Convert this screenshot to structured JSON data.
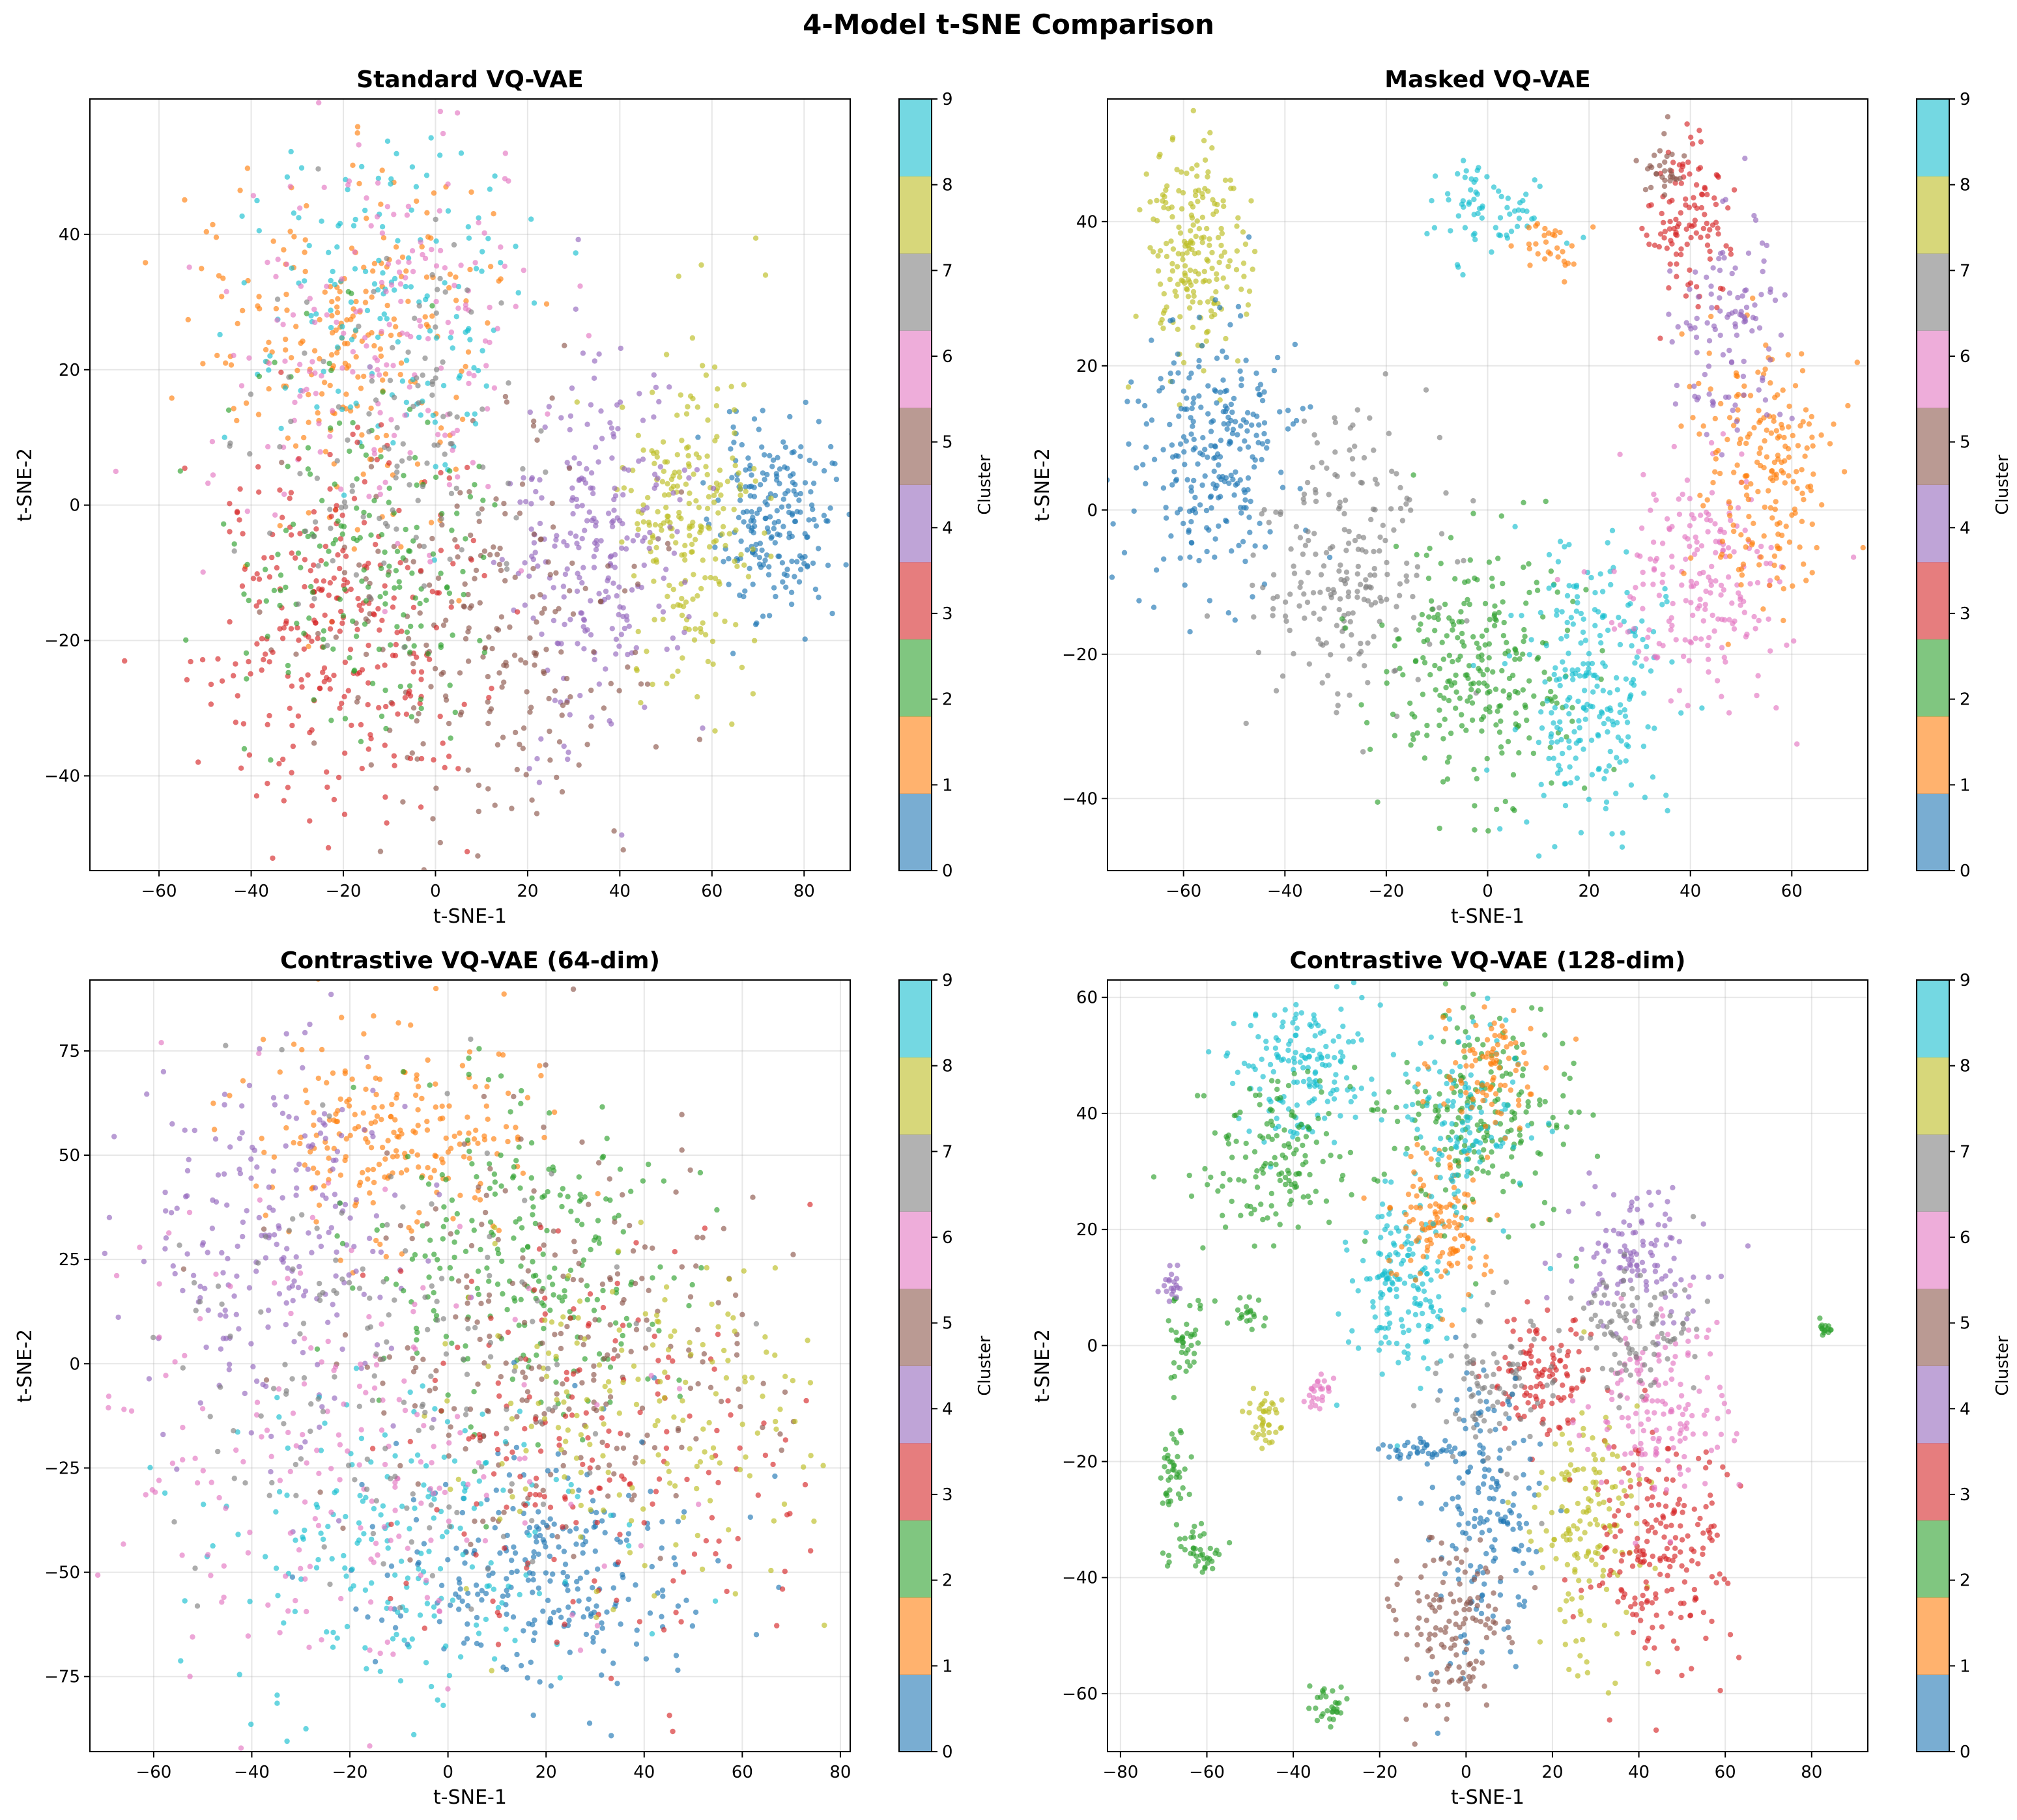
{
  "figure_title": "4-Model t-SNE Comparison",
  "chart_data": [
    {
      "type": "scatter",
      "title": "Standard VQ-VAE",
      "xlabel": "t-SNE-1",
      "ylabel": "t-SNE-2",
      "xlim": [
        -75,
        90
      ],
      "ylim": [
        -54,
        60
      ],
      "xticks": [
        -60,
        -40,
        -20,
        0,
        20,
        40,
        60,
        80
      ],
      "yticks": [
        -40,
        -20,
        0,
        20,
        40
      ],
      "xtick_labels": [
        "−60",
        "−40",
        "−20",
        "0",
        "20",
        "40",
        "60",
        "80"
      ],
      "ytick_labels": [
        "−40",
        "−20",
        "0",
        "20",
        "40"
      ],
      "grid": true,
      "colorbar": {
        "label": "Cluster",
        "ticks": [
          0,
          1,
          2,
          3,
          4,
          5,
          6,
          7,
          8,
          9
        ],
        "tick_labels": [
          "0",
          "1",
          "2",
          "3",
          "4",
          "5",
          "6",
          "7",
          "8",
          "9"
        ]
      },
      "seed": 11,
      "clusters": [
        {
          "cluster": 0,
          "center": [
            73,
            -2
          ],
          "spread": [
            6,
            7
          ],
          "n": 210
        },
        {
          "cluster": 8,
          "center": [
            55,
            -2
          ],
          "spread": [
            7,
            12
          ],
          "n": 230
        },
        {
          "cluster": 4,
          "center": [
            35,
            -5
          ],
          "spread": [
            10,
            14
          ],
          "n": 250
        },
        {
          "cluster": 5,
          "center": [
            10,
            -18
          ],
          "spread": [
            18,
            14
          ],
          "n": 230
        },
        {
          "cluster": 1,
          "center": [
            -20,
            25
          ],
          "spread": [
            16,
            14
          ],
          "n": 230
        },
        {
          "cluster": 9,
          "center": [
            -10,
            30
          ],
          "spread": [
            16,
            14
          ],
          "n": 160
        },
        {
          "cluster": 6,
          "center": [
            -10,
            25
          ],
          "spread": [
            18,
            16
          ],
          "n": 180
        },
        {
          "cluster": 3,
          "center": [
            -22,
            -18
          ],
          "spread": [
            14,
            14
          ],
          "n": 280
        },
        {
          "cluster": 2,
          "center": [
            -15,
            -10
          ],
          "spread": [
            14,
            14
          ],
          "n": 180
        },
        {
          "cluster": 7,
          "center": [
            -10,
            10
          ],
          "spread": [
            18,
            14
          ],
          "n": 120
        }
      ]
    },
    {
      "type": "scatter",
      "title": "Masked VQ-VAE",
      "xlabel": "t-SNE-1",
      "ylabel": "t-SNE-2",
      "xlim": [
        -75,
        75
      ],
      "ylim": [
        -50,
        57
      ],
      "xticks": [
        -60,
        -40,
        -20,
        0,
        20,
        40,
        60
      ],
      "yticks": [
        -40,
        -20,
        0,
        20,
        40
      ],
      "xtick_labels": [
        "−60",
        "−40",
        "−20",
        "0",
        "20",
        "40",
        "60"
      ],
      "ytick_labels": [
        "−40",
        "−20",
        "0",
        "20",
        "40"
      ],
      "grid": true,
      "colorbar": {
        "label": "Cluster",
        "ticks": [
          0,
          1,
          2,
          3,
          4,
          5,
          6,
          7,
          8,
          9
        ],
        "tick_labels": [
          "0",
          "1",
          "2",
          "3",
          "4",
          "5",
          "6",
          "7",
          "8",
          "9"
        ]
      },
      "seed": 23,
      "clusters": [
        {
          "cluster": 8,
          "center": [
            -58,
            35
          ],
          "spread": [
            5,
            8
          ],
          "n": 200
        },
        {
          "cluster": 0,
          "center": [
            -55,
            8
          ],
          "spread": [
            7,
            9
          ],
          "n": 260
        },
        {
          "cluster": 7,
          "center": [
            -28,
            -8
          ],
          "spread": [
            9,
            9
          ],
          "n": 220
        },
        {
          "cluster": 2,
          "center": [
            -2,
            -22
          ],
          "spread": [
            10,
            9
          ],
          "n": 260
        },
        {
          "cluster": 9,
          "center": [
            20,
            -25
          ],
          "spread": [
            8,
            10
          ],
          "n": 240
        },
        {
          "cluster": 6,
          "center": [
            42,
            -10
          ],
          "spread": [
            8,
            8
          ],
          "n": 200
        },
        {
          "cluster": 1,
          "center": [
            55,
            5
          ],
          "spread": [
            7,
            10
          ],
          "n": 200
        },
        {
          "cluster": 3,
          "center": [
            40,
            40
          ],
          "spread": [
            4,
            6
          ],
          "n": 110
        },
        {
          "cluster": 4,
          "center": [
            48,
            25
          ],
          "spread": [
            5,
            8
          ],
          "n": 110
        },
        {
          "cluster": 5,
          "center": [
            35,
            48
          ],
          "spread": [
            2,
            2
          ],
          "n": 30
        },
        {
          "cluster": 9,
          "center": [
            0,
            42
          ],
          "spread": [
            7,
            3
          ],
          "n": 70
        },
        {
          "cluster": 1,
          "center": [
            12,
            37
          ],
          "spread": [
            3,
            2
          ],
          "n": 30
        }
      ]
    },
    {
      "type": "scatter",
      "title": "Contrastive VQ-VAE (64-dim)",
      "xlabel": "t-SNE-1",
      "ylabel": "t-SNE-2",
      "xlim": [
        -73,
        82
      ],
      "ylim": [
        -93,
        92
      ],
      "xticks": [
        -60,
        -40,
        -20,
        0,
        20,
        40,
        60,
        80
      ],
      "yticks": [
        -75,
        -50,
        -25,
        0,
        25,
        50,
        75
      ],
      "xtick_labels": [
        "−60",
        "−40",
        "−20",
        "0",
        "20",
        "40",
        "60",
        "80"
      ],
      "ytick_labels": [
        "−75",
        "−50",
        "−25",
        "0",
        "25",
        "50",
        "75"
      ],
      "grid": true,
      "colorbar": {
        "label": "Cluster",
        "ticks": [
          0,
          1,
          2,
          3,
          4,
          5,
          6,
          7,
          8,
          9
        ],
        "tick_labels": [
          "0",
          "1",
          "2",
          "3",
          "4",
          "5",
          "6",
          "7",
          "8",
          "9"
        ]
      },
      "seed": 37,
      "clusters": [
        {
          "cluster": 1,
          "center": [
            -10,
            55
          ],
          "spread": [
            14,
            12
          ],
          "n": 220
        },
        {
          "cluster": 4,
          "center": [
            -35,
            30
          ],
          "spread": [
            14,
            24
          ],
          "n": 230
        },
        {
          "cluster": 2,
          "center": [
            15,
            25
          ],
          "spread": [
            16,
            20
          ],
          "n": 250
        },
        {
          "cluster": 5,
          "center": [
            20,
            5
          ],
          "spread": [
            22,
            25
          ],
          "n": 240
        },
        {
          "cluster": 0,
          "center": [
            20,
            -50
          ],
          "spread": [
            18,
            15
          ],
          "n": 260
        },
        {
          "cluster": 9,
          "center": [
            -10,
            -45
          ],
          "spread": [
            20,
            20
          ],
          "n": 200
        },
        {
          "cluster": 3,
          "center": [
            35,
            -20
          ],
          "spread": [
            22,
            25
          ],
          "n": 180
        },
        {
          "cluster": 8,
          "center": [
            40,
            -15
          ],
          "spread": [
            20,
            22
          ],
          "n": 180
        },
        {
          "cluster": 6,
          "center": [
            -20,
            -25
          ],
          "spread": [
            25,
            30
          ],
          "n": 200
        },
        {
          "cluster": 7,
          "center": [
            -15,
            0
          ],
          "spread": [
            25,
            30
          ],
          "n": 160
        }
      ]
    },
    {
      "type": "scatter",
      "title": "Contrastive VQ-VAE (128-dim)",
      "xlabel": "t-SNE-1",
      "ylabel": "t-SNE-2",
      "xlim": [
        -83,
        93
      ],
      "ylim": [
        -70,
        63
      ],
      "xticks": [
        -80,
        -60,
        -40,
        -20,
        0,
        20,
        40,
        60,
        80
      ],
      "yticks": [
        -60,
        -40,
        -20,
        0,
        20,
        40,
        60
      ],
      "xtick_labels": [
        "−80",
        "−60",
        "−40",
        "−20",
        "0",
        "20",
        "40",
        "60",
        "80"
      ],
      "ytick_labels": [
        "−60",
        "−40",
        "−20",
        "0",
        "20",
        "40",
        "60"
      ],
      "grid": true,
      "colorbar": {
        "label": "Cluster",
        "ticks": [
          0,
          1,
          2,
          3,
          4,
          5,
          6,
          7,
          8,
          9
        ],
        "tick_labels": [
          "0",
          "1",
          "2",
          "3",
          "4",
          "5",
          "6",
          "7",
          "8",
          "9"
        ]
      },
      "seed": 53,
      "clusters": [
        {
          "cluster": 9,
          "center": [
            -38,
            48
          ],
          "spread": [
            8,
            6
          ],
          "n": 160
        },
        {
          "cluster": 2,
          "center": [
            -45,
            32
          ],
          "spread": [
            8,
            7
          ],
          "n": 140
        },
        {
          "cluster": 9,
          "center": [
            -15,
            10
          ],
          "spread": [
            6,
            8
          ],
          "n": 160
        },
        {
          "cluster": 1,
          "center": [
            -5,
            22
          ],
          "spread": [
            6,
            6
          ],
          "n": 120
        },
        {
          "cluster": 2,
          "center": [
            5,
            40
          ],
          "spread": [
            10,
            10
          ],
          "n": 200
        },
        {
          "cluster": 9,
          "center": [
            0,
            38
          ],
          "spread": [
            8,
            8
          ],
          "n": 120
        },
        {
          "cluster": 1,
          "center": [
            5,
            48
          ],
          "spread": [
            6,
            5
          ],
          "n": 90
        },
        {
          "cluster": 3,
          "center": [
            18,
            -5
          ],
          "spread": [
            6,
            6
          ],
          "n": 110
        },
        {
          "cluster": 7,
          "center": [
            8,
            -8
          ],
          "spread": [
            7,
            7
          ],
          "n": 90
        },
        {
          "cluster": 0,
          "center": [
            5,
            -30
          ],
          "spread": [
            6,
            12
          ],
          "n": 160
        },
        {
          "cluster": 5,
          "center": [
            -3,
            -48
          ],
          "spread": [
            7,
            7
          ],
          "n": 130
        },
        {
          "cluster": 8,
          "center": [
            28,
            -32
          ],
          "spread": [
            6,
            10
          ],
          "n": 150
        },
        {
          "cluster": 3,
          "center": [
            45,
            -35
          ],
          "spread": [
            8,
            10
          ],
          "n": 200
        },
        {
          "cluster": 6,
          "center": [
            45,
            -10
          ],
          "spread": [
            8,
            8
          ],
          "n": 150
        },
        {
          "cluster": 4,
          "center": [
            40,
            15
          ],
          "spread": [
            8,
            6
          ],
          "n": 120
        },
        {
          "cluster": 7,
          "center": [
            40,
            2
          ],
          "spread": [
            8,
            6
          ],
          "n": 100
        },
        {
          "cluster": 2,
          "center": [
            -68,
            -22
          ],
          "spread": [
            2,
            4
          ],
          "n": 40
        },
        {
          "cluster": 2,
          "center": [
            -62,
            -35
          ],
          "spread": [
            3,
            2
          ],
          "n": 40
        },
        {
          "cluster": 2,
          "center": [
            -65,
            2
          ],
          "spread": [
            2,
            4
          ],
          "n": 40
        },
        {
          "cluster": 8,
          "center": [
            -46,
            -13
          ],
          "spread": [
            2,
            3
          ],
          "n": 40
        },
        {
          "cluster": 6,
          "center": [
            -34,
            -8
          ],
          "spread": [
            1.5,
            1.5
          ],
          "n": 25
        },
        {
          "cluster": 2,
          "center": [
            -32,
            -62
          ],
          "spread": [
            2,
            2
          ],
          "n": 30
        },
        {
          "cluster": 4,
          "center": [
            -68,
            10
          ],
          "spread": [
            1.5,
            1.5
          ],
          "n": 20
        },
        {
          "cluster": 2,
          "center": [
            -50,
            5
          ],
          "spread": [
            2,
            1.5
          ],
          "n": 20
        },
        {
          "cluster": 2,
          "center": [
            83,
            3
          ],
          "spread": [
            0.8,
            0.8
          ],
          "n": 15
        },
        {
          "cluster": 0,
          "center": [
            -10,
            -18
          ],
          "spread": [
            6,
            1
          ],
          "n": 40
        }
      ]
    }
  ],
  "cluster_colors": [
    "#1f77b4",
    "#ff7f0e",
    "#2ca02c",
    "#d62728",
    "#9467bd",
    "#8c564b",
    "#e377c2",
    "#7f7f7f",
    "#bcbd22",
    "#17becf"
  ]
}
